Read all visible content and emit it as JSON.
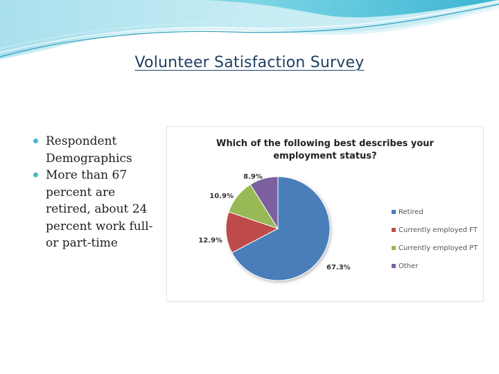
{
  "slide": {
    "title": "Volunteer Satisfaction Survey",
    "bullets": [
      {
        "lines": [
          "Respondent",
          "Demographics"
        ]
      },
      {
        "lines": [
          "More than 67",
          "percent are",
          "retired, about 24",
          "percent work full-",
          "or part-time"
        ]
      }
    ],
    "colors": {
      "title": "#1e3f63",
      "bullet_marker": "#48b8c8",
      "header_wave": "#5fc8dc"
    }
  },
  "chart_data": {
    "type": "pie",
    "title_lines": [
      "Which of the following best describes your",
      "employment status?"
    ],
    "categories": [
      "Retired",
      "Currently employed FT",
      "Currently employed PT",
      "Other"
    ],
    "values": [
      67.3,
      12.9,
      10.9,
      8.9
    ],
    "value_labels": [
      "67.3%",
      "12.9%",
      "10.9%",
      "8.9%"
    ],
    "colors": [
      "#4a7ebb",
      "#be4b48",
      "#98b954",
      "#7d60a0"
    ],
    "legend_position": "right",
    "start_angle": "12 o'clock, clockwise"
  }
}
